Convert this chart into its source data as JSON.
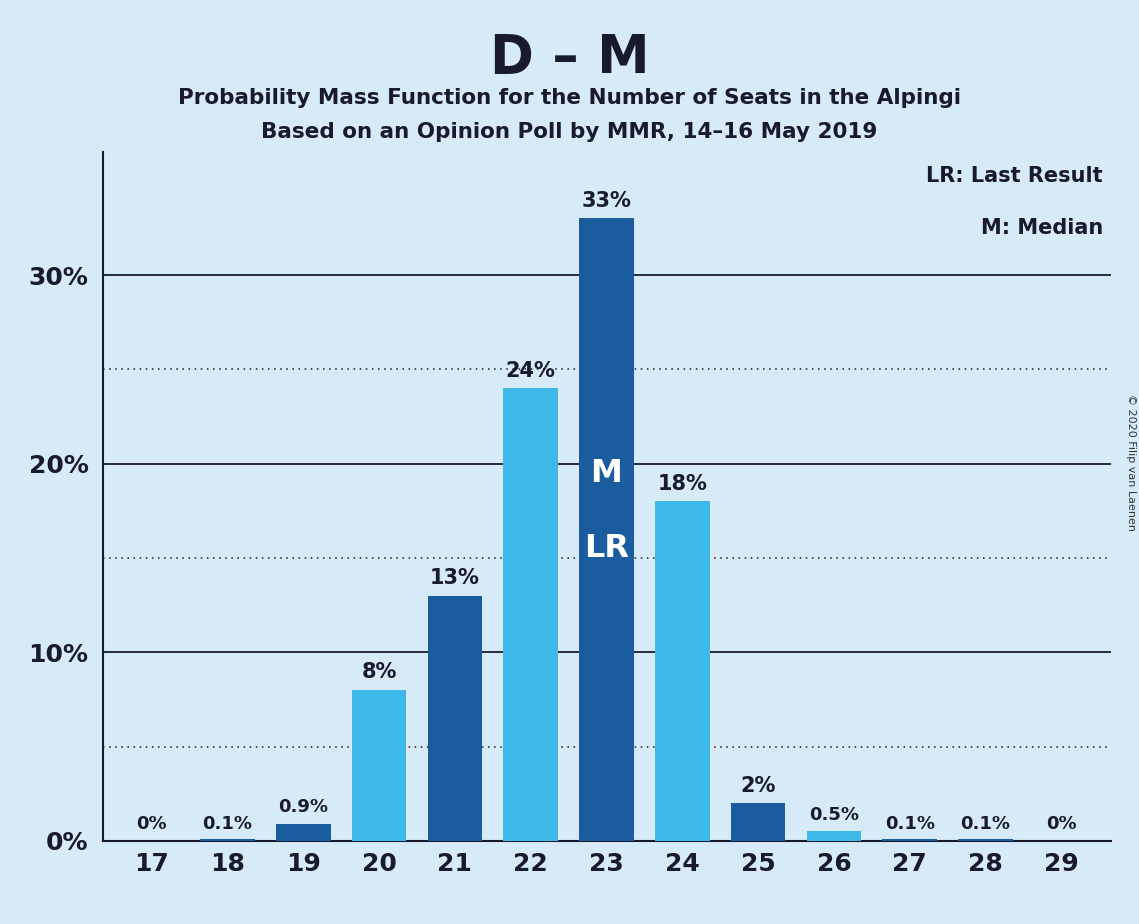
{
  "title": "D – M",
  "subtitle1": "Probability Mass Function for the Number of Seats in the Alpingi",
  "subtitle2": "Based on an Opinion Poll by MMR, 14–16 May 2019",
  "copyright": "© 2020 Filip van Laenen",
  "legend_lr": "LR: Last Result",
  "legend_m": "M: Median",
  "seats": [
    17,
    18,
    19,
    20,
    21,
    22,
    23,
    24,
    25,
    26,
    27,
    28,
    29
  ],
  "values": [
    0.0,
    0.001,
    0.009,
    0.08,
    0.13,
    0.24,
    0.33,
    0.18,
    0.02,
    0.005,
    0.001,
    0.001,
    0.0
  ],
  "labels": [
    "0%",
    "0.1%",
    "0.9%",
    "8%",
    "13%",
    "24%",
    "33%",
    "18%",
    "2%",
    "0.5%",
    "0.1%",
    "0.1%",
    "0%"
  ],
  "bar_colors": [
    "#1a5c9e",
    "#1a5c9e",
    "#1a5c9e",
    "#3db8e8",
    "#1a5c9e",
    "#3db8e8",
    "#1a5c9e",
    "#3db8e8",
    "#1a5c9e",
    "#3db8e8",
    "#1a5c9e",
    "#1a5c9e",
    "#1a5c9e"
  ],
  "median_seat": 23,
  "background_color": "#d6eaf8",
  "solid_yticks": [
    0.0,
    0.1,
    0.2,
    0.3
  ],
  "dotted_yticks": [
    0.05,
    0.15,
    0.25
  ],
  "labeled_yticks": [
    0.0,
    0.1,
    0.2,
    0.3
  ],
  "ytick_labels_map": {
    "0.0": "0%",
    "0.1": "10%",
    "0.2": "20%",
    "0.3": "30%"
  }
}
